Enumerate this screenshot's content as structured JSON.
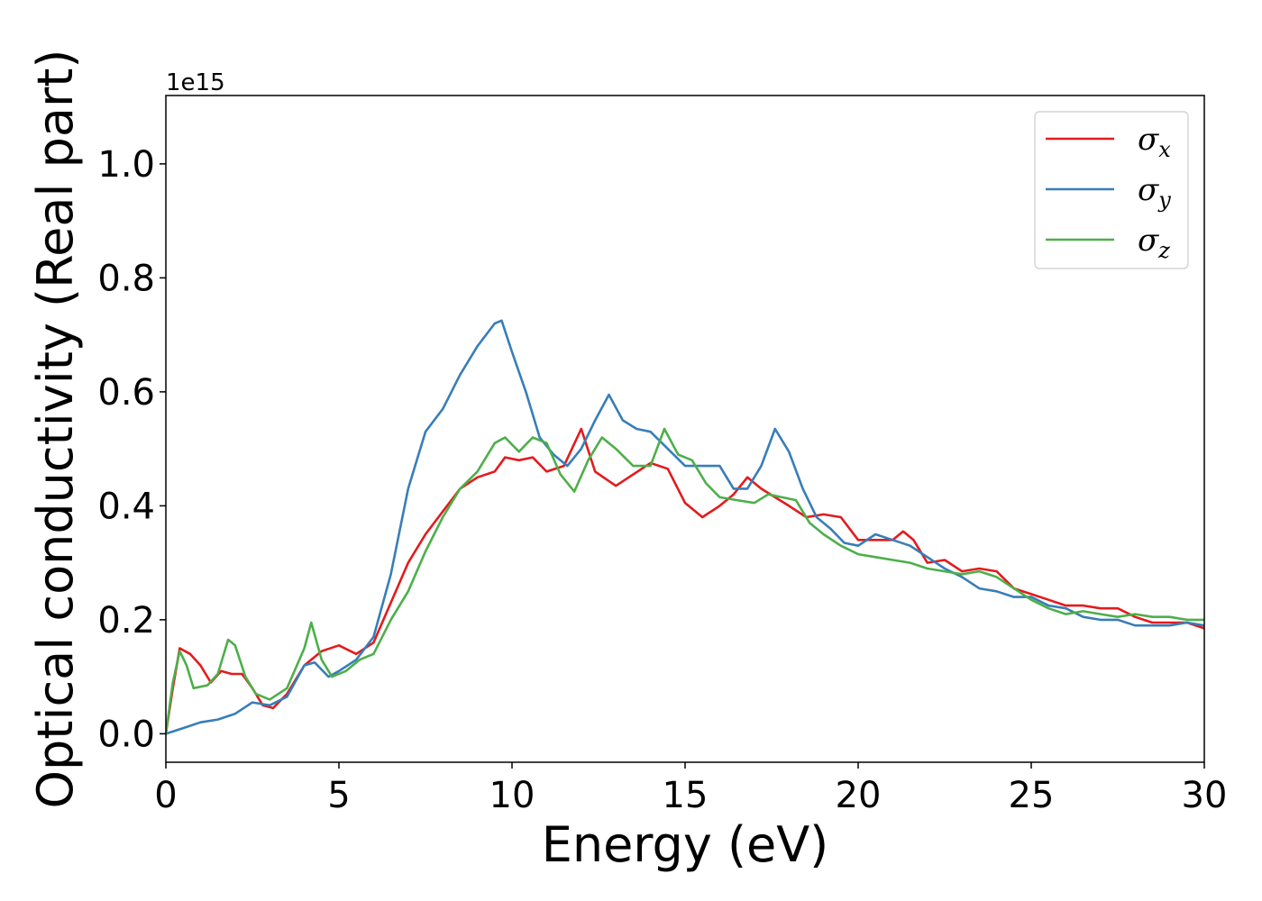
{
  "chart_data": {
    "type": "line",
    "title": "",
    "xlabel": "Energy (eV)",
    "ylabel": "Optical conductivity (Real part)",
    "y_offset_text": "1e15",
    "xlim": [
      0,
      30
    ],
    "ylim": [
      -0.05,
      1.12
    ],
    "xticks": [
      0,
      5,
      10,
      15,
      20,
      25,
      30
    ],
    "xtick_labels": [
      "0",
      "5",
      "10",
      "15",
      "20",
      "25",
      "30"
    ],
    "yticks": [
      0.0,
      0.2,
      0.4,
      0.6,
      0.8,
      1.0
    ],
    "ytick_labels": [
      "0.0",
      "0.2",
      "0.4",
      "0.6",
      "0.8",
      "1.0"
    ],
    "grid": false,
    "legend_position": "upper-right",
    "series": [
      {
        "name": "σx",
        "legend_symbol": "σ",
        "legend_subscript": "x",
        "color": "#e41a1c",
        "points": [
          [
            0,
            0
          ],
          [
            0.2,
            0.08
          ],
          [
            0.4,
            0.15
          ],
          [
            0.7,
            0.14
          ],
          [
            1.0,
            0.12
          ],
          [
            1.3,
            0.09
          ],
          [
            1.6,
            0.11
          ],
          [
            1.9,
            0.105
          ],
          [
            2.2,
            0.105
          ],
          [
            2.5,
            0.08
          ],
          [
            2.8,
            0.05
          ],
          [
            3.1,
            0.045
          ],
          [
            3.5,
            0.07
          ],
          [
            4.0,
            0.12
          ],
          [
            4.5,
            0.145
          ],
          [
            5.0,
            0.155
          ],
          [
            5.5,
            0.14
          ],
          [
            6.0,
            0.16
          ],
          [
            6.5,
            0.23
          ],
          [
            7.0,
            0.3
          ],
          [
            7.5,
            0.35
          ],
          [
            8.0,
            0.39
          ],
          [
            8.5,
            0.43
          ],
          [
            9.0,
            0.45
          ],
          [
            9.5,
            0.46
          ],
          [
            9.8,
            0.485
          ],
          [
            10.2,
            0.48
          ],
          [
            10.6,
            0.485
          ],
          [
            11.0,
            0.46
          ],
          [
            11.5,
            0.47
          ],
          [
            12.0,
            0.535
          ],
          [
            12.4,
            0.46
          ],
          [
            13.0,
            0.435
          ],
          [
            13.5,
            0.455
          ],
          [
            14.0,
            0.475
          ],
          [
            14.5,
            0.465
          ],
          [
            15.0,
            0.405
          ],
          [
            15.5,
            0.38
          ],
          [
            16.0,
            0.4
          ],
          [
            16.4,
            0.42
          ],
          [
            16.8,
            0.45
          ],
          [
            17.2,
            0.43
          ],
          [
            17.6,
            0.415
          ],
          [
            18.0,
            0.4
          ],
          [
            18.5,
            0.38
          ],
          [
            19.0,
            0.385
          ],
          [
            19.5,
            0.38
          ],
          [
            20.0,
            0.34
          ],
          [
            20.5,
            0.34
          ],
          [
            21.0,
            0.34
          ],
          [
            21.3,
            0.355
          ],
          [
            21.6,
            0.34
          ],
          [
            22.0,
            0.3
          ],
          [
            22.5,
            0.305
          ],
          [
            23.0,
            0.285
          ],
          [
            23.5,
            0.29
          ],
          [
            24.0,
            0.285
          ],
          [
            24.5,
            0.255
          ],
          [
            25.0,
            0.245
          ],
          [
            25.5,
            0.235
          ],
          [
            26.0,
            0.225
          ],
          [
            26.5,
            0.225
          ],
          [
            27.0,
            0.22
          ],
          [
            27.5,
            0.22
          ],
          [
            28.0,
            0.205
          ],
          [
            28.5,
            0.195
          ],
          [
            29.0,
            0.195
          ],
          [
            29.5,
            0.195
          ],
          [
            30.0,
            0.185
          ]
        ]
      },
      {
        "name": "σy",
        "legend_symbol": "σ",
        "legend_subscript": "y",
        "color": "#377eb8",
        "points": [
          [
            0,
            0
          ],
          [
            0.5,
            0.01
          ],
          [
            1.0,
            0.02
          ],
          [
            1.5,
            0.025
          ],
          [
            2.0,
            0.035
          ],
          [
            2.5,
            0.055
          ],
          [
            3.0,
            0.05
          ],
          [
            3.5,
            0.065
          ],
          [
            4.0,
            0.12
          ],
          [
            4.3,
            0.125
          ],
          [
            4.7,
            0.1
          ],
          [
            5.0,
            0.11
          ],
          [
            5.5,
            0.13
          ],
          [
            6.0,
            0.17
          ],
          [
            6.5,
            0.28
          ],
          [
            7.0,
            0.43
          ],
          [
            7.5,
            0.53
          ],
          [
            8.0,
            0.57
          ],
          [
            8.5,
            0.63
          ],
          [
            9.0,
            0.68
          ],
          [
            9.5,
            0.72
          ],
          [
            9.7,
            0.725
          ],
          [
            10.0,
            0.67
          ],
          [
            10.4,
            0.6
          ],
          [
            10.8,
            0.52
          ],
          [
            11.2,
            0.49
          ],
          [
            11.6,
            0.47
          ],
          [
            12.0,
            0.5
          ],
          [
            12.4,
            0.55
          ],
          [
            12.8,
            0.595
          ],
          [
            13.2,
            0.55
          ],
          [
            13.6,
            0.535
          ],
          [
            14.0,
            0.53
          ],
          [
            14.5,
            0.5
          ],
          [
            15.0,
            0.47
          ],
          [
            15.5,
            0.47
          ],
          [
            16.0,
            0.47
          ],
          [
            16.4,
            0.43
          ],
          [
            16.8,
            0.43
          ],
          [
            17.2,
            0.47
          ],
          [
            17.6,
            0.535
          ],
          [
            18.0,
            0.495
          ],
          [
            18.4,
            0.43
          ],
          [
            18.8,
            0.38
          ],
          [
            19.2,
            0.36
          ],
          [
            19.6,
            0.335
          ],
          [
            20.0,
            0.33
          ],
          [
            20.5,
            0.35
          ],
          [
            21.0,
            0.34
          ],
          [
            21.5,
            0.33
          ],
          [
            22.0,
            0.31
          ],
          [
            22.5,
            0.29
          ],
          [
            23.0,
            0.275
          ],
          [
            23.5,
            0.255
          ],
          [
            24.0,
            0.25
          ],
          [
            24.5,
            0.24
          ],
          [
            25.0,
            0.24
          ],
          [
            25.5,
            0.225
          ],
          [
            26.0,
            0.22
          ],
          [
            26.5,
            0.205
          ],
          [
            27.0,
            0.2
          ],
          [
            27.5,
            0.2
          ],
          [
            28.0,
            0.19
          ],
          [
            28.5,
            0.19
          ],
          [
            29.0,
            0.19
          ],
          [
            29.5,
            0.195
          ],
          [
            30.0,
            0.19
          ]
        ]
      },
      {
        "name": "σz",
        "legend_symbol": "σ",
        "legend_subscript": "z",
        "color": "#4daf4a",
        "points": [
          [
            0,
            0
          ],
          [
            0.2,
            0.09
          ],
          [
            0.4,
            0.145
          ],
          [
            0.6,
            0.12
          ],
          [
            0.8,
            0.08
          ],
          [
            1.2,
            0.085
          ],
          [
            1.5,
            0.105
          ],
          [
            1.8,
            0.165
          ],
          [
            2.0,
            0.155
          ],
          [
            2.3,
            0.1
          ],
          [
            2.6,
            0.07
          ],
          [
            3.0,
            0.06
          ],
          [
            3.5,
            0.08
          ],
          [
            4.0,
            0.15
          ],
          [
            4.2,
            0.195
          ],
          [
            4.5,
            0.13
          ],
          [
            4.8,
            0.1
          ],
          [
            5.2,
            0.11
          ],
          [
            5.6,
            0.13
          ],
          [
            6.0,
            0.14
          ],
          [
            6.5,
            0.2
          ],
          [
            7.0,
            0.25
          ],
          [
            7.5,
            0.32
          ],
          [
            8.0,
            0.38
          ],
          [
            8.5,
            0.43
          ],
          [
            9.0,
            0.46
          ],
          [
            9.5,
            0.51
          ],
          [
            9.8,
            0.52
          ],
          [
            10.2,
            0.495
          ],
          [
            10.6,
            0.52
          ],
          [
            11.0,
            0.51
          ],
          [
            11.4,
            0.455
          ],
          [
            11.8,
            0.425
          ],
          [
            12.2,
            0.48
          ],
          [
            12.6,
            0.52
          ],
          [
            13.0,
            0.5
          ],
          [
            13.5,
            0.47
          ],
          [
            14.0,
            0.47
          ],
          [
            14.4,
            0.535
          ],
          [
            14.8,
            0.49
          ],
          [
            15.2,
            0.48
          ],
          [
            15.6,
            0.44
          ],
          [
            16.0,
            0.415
          ],
          [
            16.5,
            0.41
          ],
          [
            17.0,
            0.405
          ],
          [
            17.4,
            0.42
          ],
          [
            17.8,
            0.415
          ],
          [
            18.2,
            0.41
          ],
          [
            18.6,
            0.37
          ],
          [
            19.0,
            0.35
          ],
          [
            19.5,
            0.33
          ],
          [
            20.0,
            0.315
          ],
          [
            20.5,
            0.31
          ],
          [
            21.0,
            0.305
          ],
          [
            21.5,
            0.3
          ],
          [
            22.0,
            0.29
          ],
          [
            22.5,
            0.285
          ],
          [
            23.0,
            0.28
          ],
          [
            23.5,
            0.285
          ],
          [
            24.0,
            0.275
          ],
          [
            24.5,
            0.255
          ],
          [
            25.0,
            0.235
          ],
          [
            25.5,
            0.22
          ],
          [
            26.0,
            0.21
          ],
          [
            26.5,
            0.215
          ],
          [
            27.0,
            0.21
          ],
          [
            27.5,
            0.205
          ],
          [
            28.0,
            0.21
          ],
          [
            28.5,
            0.205
          ],
          [
            29.0,
            0.205
          ],
          [
            29.5,
            0.2
          ],
          [
            30.0,
            0.2
          ]
        ]
      }
    ]
  }
}
